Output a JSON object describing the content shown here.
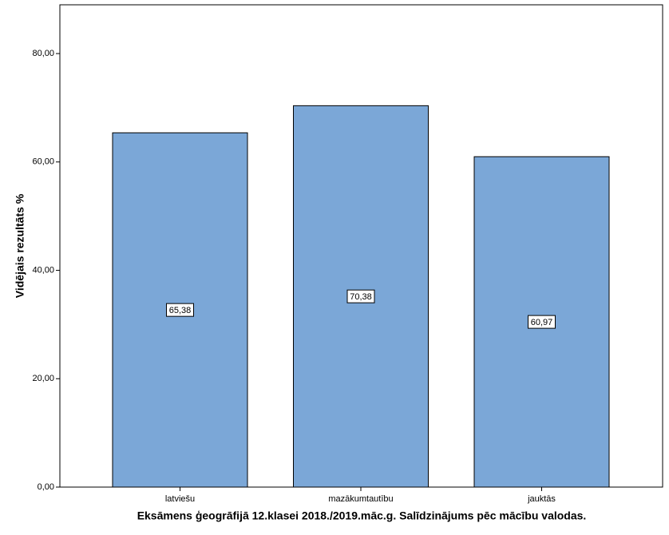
{
  "chart_data": {
    "type": "bar",
    "x_label": "Eksāmens ģeogrāfijā 12.klasei 2018./2019.māc.g. Salīdzinājums pēc mācību valodas.",
    "y_label": "Vidējais rezultāts %",
    "categories": [
      "latviešu",
      "mazākumtautību",
      "jauktās"
    ],
    "values": [
      65.38,
      70.38,
      60.97
    ],
    "value_labels": [
      "65,38",
      "70,38",
      "60,97"
    ],
    "color": "#7ba7d7",
    "ylim": [
      0,
      89
    ],
    "yticks": [
      {
        "value": 0,
        "label": "0,00"
      },
      {
        "value": 20,
        "label": "20,00"
      },
      {
        "value": 40,
        "label": "40,00"
      },
      {
        "value": 60,
        "label": "60,00"
      },
      {
        "value": 80,
        "label": "80,00"
      }
    ],
    "grid": false
  }
}
